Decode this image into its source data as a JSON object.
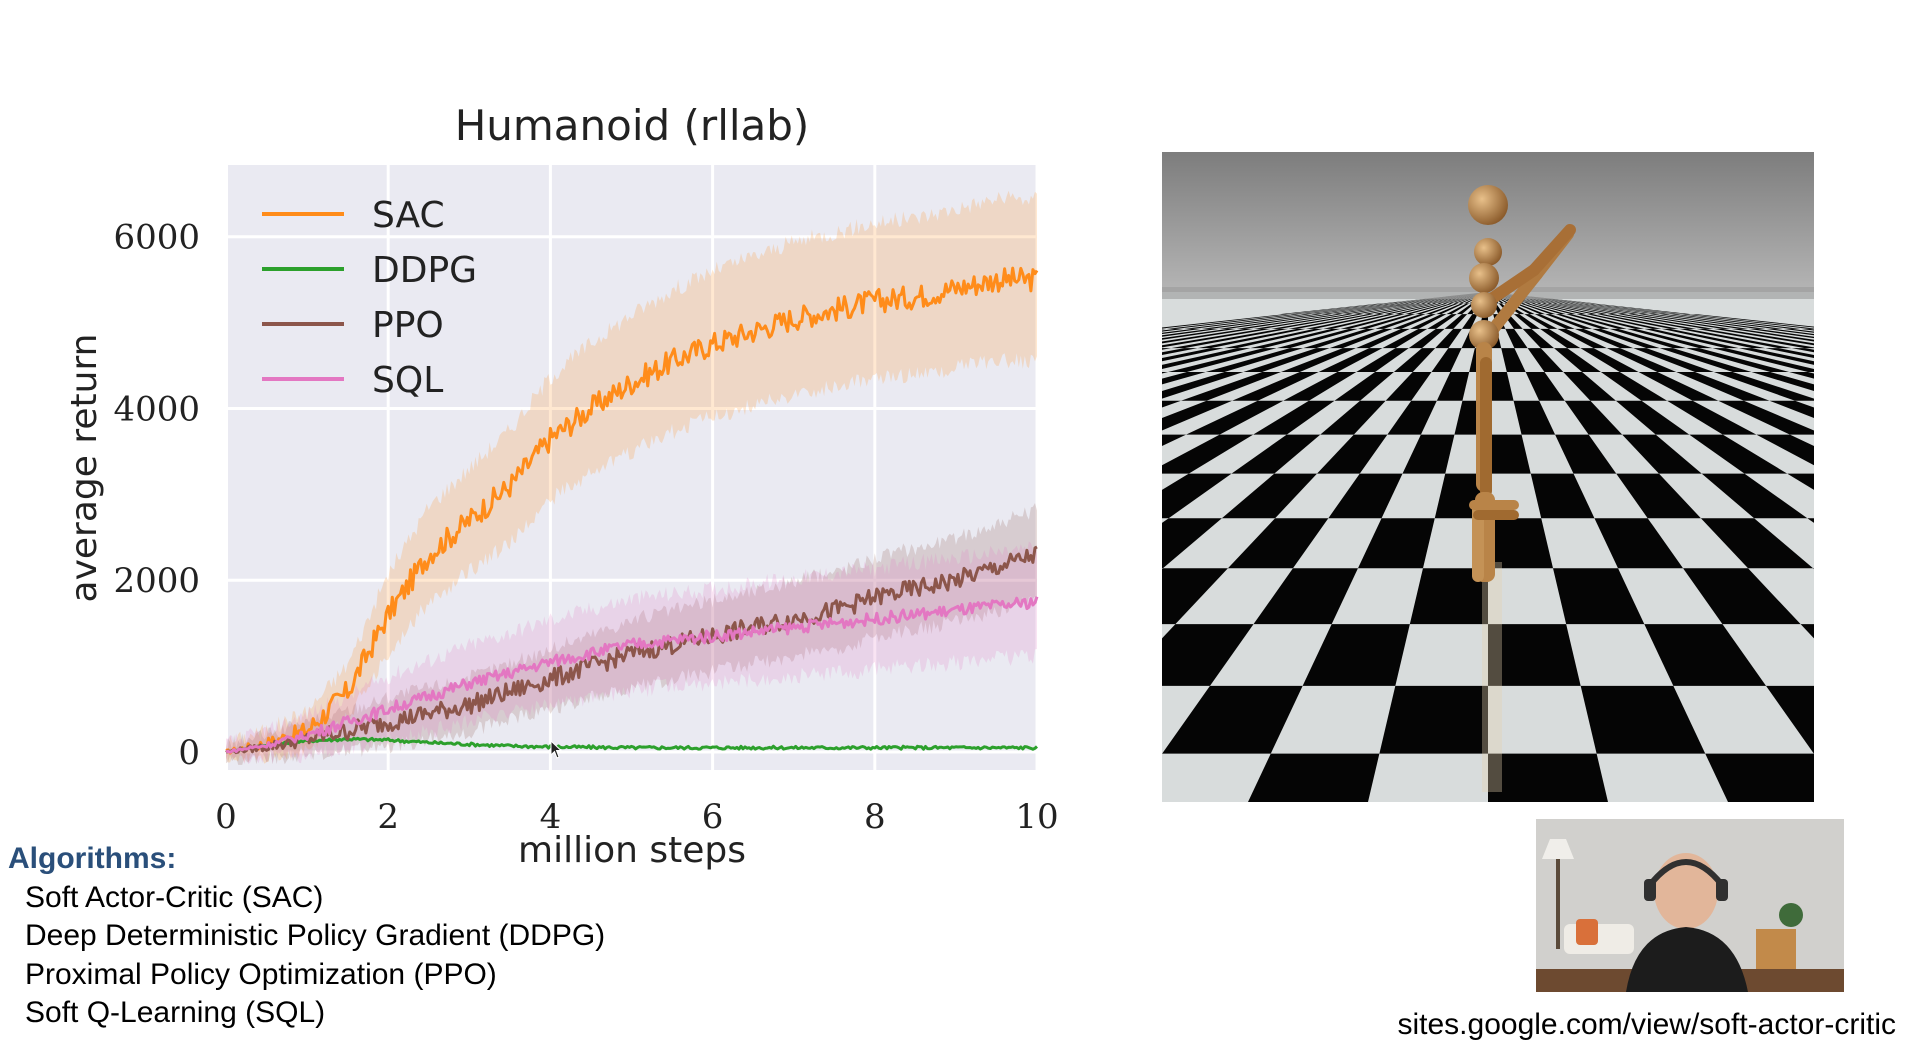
{
  "chart_data": {
    "type": "line",
    "title": "Humanoid (rllab)",
    "xlabel": "million steps",
    "ylabel": "average return",
    "xlim": [
      0,
      10
    ],
    "ylim": [
      -200,
      7000
    ],
    "x_ticks": [
      "0",
      "2",
      "4",
      "6",
      "8",
      "10"
    ],
    "y_ticks": [
      "0",
      "2000",
      "4000",
      "6000"
    ],
    "grid": true,
    "legend_position": "top-left",
    "x": [
      0,
      0.5,
      1,
      1.5,
      2,
      2.5,
      3,
      3.5,
      4,
      4.5,
      5,
      5.5,
      6,
      6.5,
      7,
      7.5,
      8,
      8.5,
      9,
      9.5,
      10
    ],
    "series": [
      {
        "name": "SAC",
        "color": "#ff8c1a",
        "values": [
          0,
          100,
          250,
          700,
          1600,
          2300,
          2700,
          3100,
          3650,
          4000,
          4300,
          4550,
          4750,
          4900,
          5050,
          5150,
          5250,
          5300,
          5400,
          5500,
          5500
        ]
      },
      {
        "name": "DDPG",
        "color": "#2ca02c",
        "values": [
          0,
          80,
          130,
          150,
          140,
          110,
          90,
          70,
          60,
          55,
          50,
          50,
          50,
          50,
          50,
          50,
          50,
          50,
          50,
          50,
          50
        ]
      },
      {
        "name": "PPO",
        "color": "#8c564b",
        "values": [
          0,
          60,
          150,
          250,
          350,
          450,
          550,
          700,
          850,
          1000,
          1150,
          1250,
          1350,
          1450,
          1550,
          1650,
          1800,
          1900,
          2000,
          2150,
          2300
        ]
      },
      {
        "name": "SQL",
        "color": "#e377c2",
        "values": [
          0,
          80,
          200,
          350,
          500,
          650,
          800,
          920,
          1050,
          1150,
          1250,
          1300,
          1350,
          1400,
          1450,
          1500,
          1550,
          1600,
          1650,
          1700,
          1750
        ]
      }
    ]
  },
  "algorithms": {
    "heading": "Algorithms:",
    "items": [
      "Soft Actor-Critic (SAC)",
      "Deep Deterministic Policy Gradient (DDPG)",
      "Proximal Policy Optimization (PPO)",
      "Soft Q-Learning (SQL)"
    ]
  },
  "footer": {
    "url": "sites.google.com/view/soft-actor-critic"
  }
}
